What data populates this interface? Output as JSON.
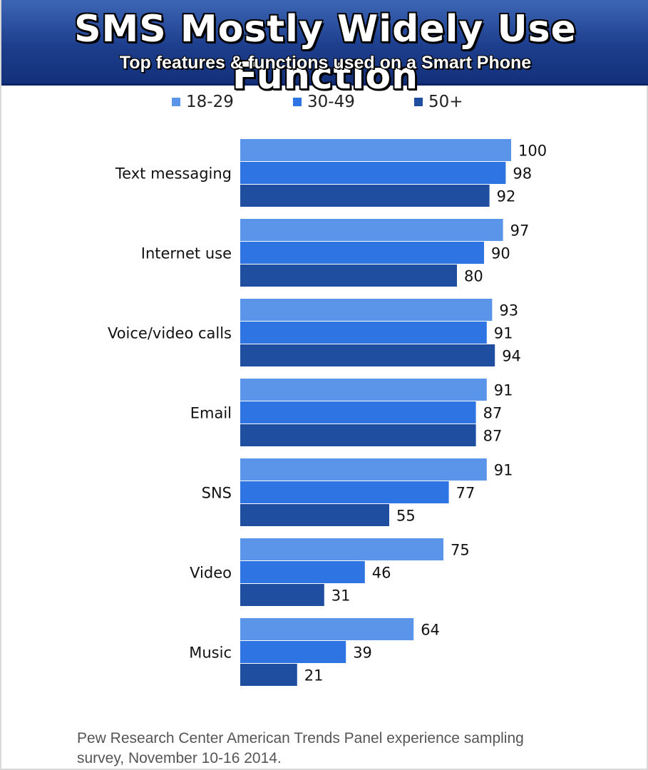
{
  "banner": {
    "title": "SMS Mostly Widely Use Function",
    "subtitle": "Top features & functions used on a Smart Phone"
  },
  "colors": {
    "banner": "#1d3e8c",
    "series_18_29": "#5b95ea",
    "series_30_49": "#2e74e3",
    "series_50_plus": "#1f4ea1"
  },
  "chart_data": {
    "type": "bar",
    "orientation": "horizontal",
    "categories": [
      "Text messaging",
      "Internet use",
      "Voice/video calls",
      "Email",
      "SNS",
      "Video",
      "Music"
    ],
    "series": [
      {
        "name": "18-29",
        "color": "#5b95ea",
        "values": [
          100,
          97,
          93,
          91,
          91,
          75,
          64
        ]
      },
      {
        "name": "30-49",
        "color": "#2e74e3",
        "values": [
          98,
          90,
          91,
          87,
          77,
          46,
          39
        ]
      },
      {
        "name": "50+",
        "color": "#1f4ea1",
        "values": [
          92,
          80,
          94,
          87,
          55,
          31,
          21
        ]
      }
    ],
    "xlim": [
      0,
      100
    ],
    "grid": false,
    "legend_position": "top",
    "data_labels": true
  },
  "source": {
    "line1": "Pew Research Center American Trends Panel experience sampling",
    "line2": "survey, November 10-16 2014."
  }
}
